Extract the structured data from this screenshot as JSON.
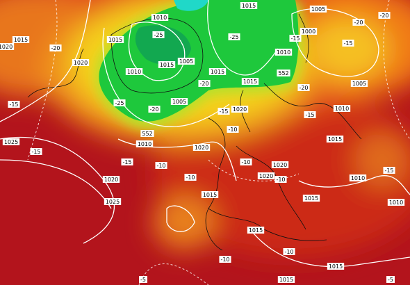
{
  "labels": [
    "1010",
    "1015",
    "-25",
    "1015",
    "1005",
    "1010",
    "-25",
    "-20",
    "1005",
    "1015",
    "-25",
    "1010",
    "1015",
    "-20",
    "1015",
    "552",
    "1005",
    "1000",
    "-15",
    "1005",
    "-20",
    "-15",
    "-20",
    "-20",
    "1020",
    "1015",
    "1020",
    "-20",
    "-15",
    "1020",
    "-15",
    "552",
    "1010",
    "1010",
    "-15",
    "-10",
    "1025",
    "-15",
    "1020",
    "-15",
    "-10",
    "1020",
    "1025",
    "-10",
    "-10",
    "1020",
    "1020",
    "-10",
    "1015",
    "1015",
    "-15",
    "1010",
    "1010",
    "1015",
    "1015",
    "-10",
    "-10",
    "1015",
    "-5",
    "-5",
    "1015"
  ]
}
